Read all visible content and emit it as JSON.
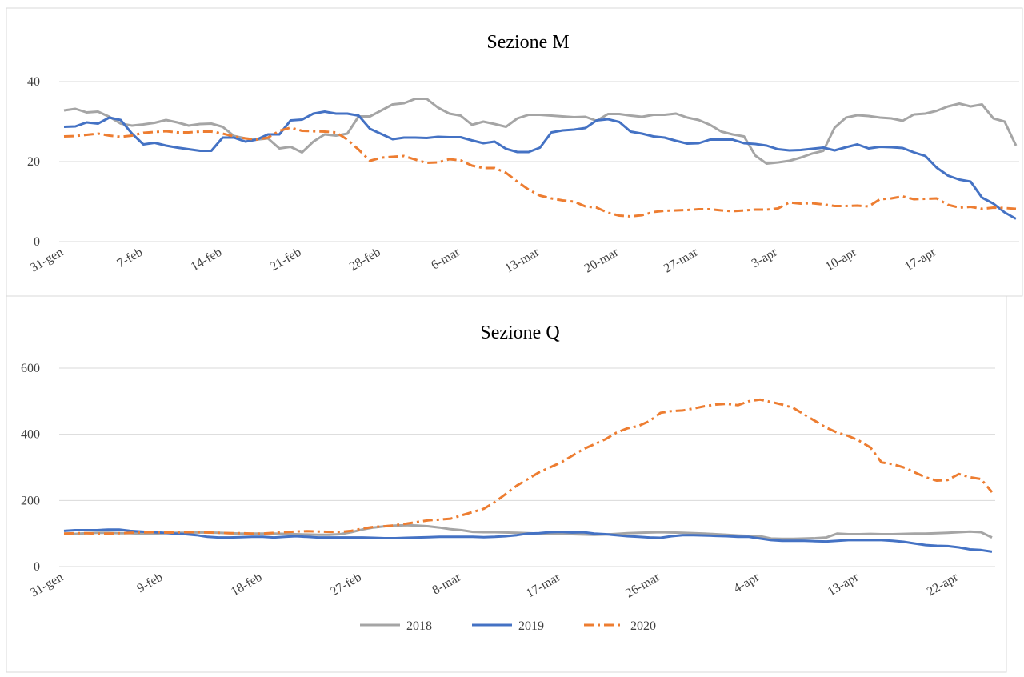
{
  "chart_data": [
    {
      "type": "line",
      "title": "Sezione M",
      "categories": [
        "31-gen",
        null,
        null,
        null,
        null,
        null,
        null,
        "7-feb",
        null,
        null,
        null,
        null,
        null,
        null,
        "14-feb",
        null,
        null,
        null,
        null,
        null,
        null,
        "21-feb",
        null,
        null,
        null,
        null,
        null,
        null,
        "28-feb",
        null,
        null,
        null,
        null,
        null,
        null,
        "6-mar",
        null,
        null,
        null,
        null,
        null,
        null,
        "13-mar",
        null,
        null,
        null,
        null,
        null,
        null,
        "20-mar",
        null,
        null,
        null,
        null,
        null,
        null,
        "27-mar",
        null,
        null,
        null,
        null,
        null,
        null,
        "3-apr",
        null,
        null,
        null,
        null,
        null,
        null,
        "10-apr",
        null,
        null,
        null,
        null,
        null,
        null,
        "17-apr",
        null,
        null,
        null,
        null,
        null,
        null,
        null
      ],
      "ylim": [
        0,
        40
      ],
      "yticks": [
        0,
        20,
        40
      ],
      "grid": true,
      "series": [
        {
          "color": "#a5a5a5",
          "dash": "solid",
          "values": [
            32.8,
            33.2,
            32.3,
            32.5,
            31.2,
            29.5,
            29,
            29.3,
            29.7,
            30.4,
            29.8,
            29,
            29.4,
            29.5,
            28.7,
            26.4,
            25.8,
            25.5,
            25.8,
            23.3,
            23.7,
            22.3,
            25,
            26.8,
            26.5,
            27,
            31.3,
            31.3,
            32.8,
            34.3,
            34.6,
            35.7,
            35.7,
            33.5,
            32,
            31.5,
            29.2,
            30,
            29.4,
            28.7,
            30.8,
            31.7,
            31.7,
            31.5,
            31.3,
            31.1,
            31.2,
            30.2,
            31.9,
            31.9,
            31.5,
            31.2,
            31.7,
            31.7,
            32,
            31,
            30.4,
            29.2,
            27.5,
            26.8,
            26.3,
            21.5,
            19.5,
            19.8,
            20.2,
            21,
            22,
            22.7,
            28.5,
            31,
            31.6,
            31.4,
            31,
            30.8,
            30.2,
            31.8,
            32,
            32.7,
            33.8,
            34.5,
            33.8,
            34.3,
            30.8,
            30,
            24
          ]
        },
        {
          "color": "#4472c4",
          "dash": "solid",
          "values": [
            28.7,
            28.8,
            29.8,
            29.5,
            31,
            30.4,
            27,
            24.3,
            24.7,
            24,
            23.5,
            23.1,
            22.7,
            22.7,
            26,
            26,
            25,
            25.5,
            26.8,
            26.8,
            30.3,
            30.5,
            32,
            32.5,
            32,
            32,
            31.5,
            28.2,
            26.9,
            25.6,
            26,
            26,
            25.9,
            26.2,
            26.1,
            26.1,
            25.3,
            24.6,
            25,
            23.2,
            22.4,
            22.4,
            23.5,
            27.3,
            27.8,
            28,
            28.4,
            30.3,
            30.6,
            29.9,
            27.5,
            27,
            26.3,
            26,
            25.2,
            24.5,
            24.6,
            25.5,
            25.5,
            25.5,
            24.6,
            24.4,
            24,
            23.1,
            22.8,
            22.9,
            23.2,
            23.5,
            22.8,
            23.6,
            24.3,
            23.3,
            23.7,
            23.6,
            23.4,
            22.3,
            21.4,
            18.5,
            16.5,
            15.5,
            15,
            11,
            9.5,
            7.3,
            5.7
          ]
        },
        {
          "color": "#ed7d31",
          "dash": "dashdot",
          "values": [
            26.3,
            26.4,
            26.7,
            27,
            26.5,
            26.2,
            26.5,
            27.2,
            27.4,
            27.6,
            27.3,
            27.3,
            27.5,
            27.5,
            27,
            26.3,
            25.8,
            25.5,
            26,
            27.7,
            28.5,
            27.7,
            27.6,
            27.5,
            27.3,
            25.5,
            23,
            20.2,
            21,
            21.2,
            21.4,
            20.5,
            19.7,
            19.8,
            20.6,
            20.3,
            19,
            18.4,
            18.4,
            17.2,
            15,
            13,
            11.5,
            10.8,
            10.3,
            10,
            8.8,
            8.5,
            7.2,
            6.5,
            6.3,
            6.6,
            7.4,
            7.7,
            7.8,
            7.9,
            8.1,
            8.1,
            7.8,
            7.6,
            7.8,
            8,
            8,
            8.3,
            9.8,
            9.5,
            9.6,
            9.3,
            8.9,
            8.9,
            9,
            8.8,
            10.6,
            10.8,
            11.3,
            10.6,
            10.7,
            10.8,
            9.2,
            8.5,
            8.7,
            8.2,
            8.5,
            8.4,
            8.2
          ]
        }
      ]
    },
    {
      "type": "line",
      "title": "Sezione Q",
      "categories": [
        "31-gen",
        null,
        null,
        null,
        null,
        null,
        null,
        null,
        null,
        "9-feb",
        null,
        null,
        null,
        null,
        null,
        null,
        null,
        null,
        "18-feb",
        null,
        null,
        null,
        null,
        null,
        null,
        null,
        null,
        "27-feb",
        null,
        null,
        null,
        null,
        null,
        null,
        null,
        null,
        "8-mar",
        null,
        null,
        null,
        null,
        null,
        null,
        null,
        null,
        "17-mar",
        null,
        null,
        null,
        null,
        null,
        null,
        null,
        null,
        "26-mar",
        null,
        null,
        null,
        null,
        null,
        null,
        null,
        null,
        "4-apr",
        null,
        null,
        null,
        null,
        null,
        null,
        null,
        null,
        "13-apr",
        null,
        null,
        null,
        null,
        null,
        null,
        null,
        null,
        "22-apr",
        null,
        null,
        null
      ],
      "ylim": [
        0,
        600
      ],
      "yticks": [
        0,
        200,
        400,
        600
      ],
      "grid": true,
      "legend": "bottom",
      "series": [
        {
          "name": "2018",
          "color": "#a5a5a5",
          "dash": "solid",
          "values": [
            100,
            99,
            101,
            102,
            102,
            101,
            101,
            100,
            100,
            101,
            102,
            102,
            103,
            103,
            102,
            101,
            100,
            100,
            100,
            100,
            99,
            98,
            97,
            96,
            96,
            98,
            104,
            112,
            118,
            122,
            124,
            125,
            124,
            122,
            118,
            113,
            110,
            105,
            104,
            104,
            103,
            102,
            101,
            100,
            100,
            99,
            98,
            97,
            96,
            97,
            99,
            101,
            102,
            103,
            104,
            103,
            102,
            101,
            100,
            98,
            96,
            94,
            93,
            92,
            85,
            84,
            84,
            85,
            86,
            88,
            100,
            98,
            98,
            99,
            98,
            98,
            99,
            100,
            100,
            101,
            102,
            104,
            106,
            104,
            88
          ]
        },
        {
          "name": "2019",
          "color": "#4472c4",
          "dash": "solid",
          "values": [
            108,
            110,
            110,
            110,
            112,
            112,
            108,
            106,
            104,
            102,
            100,
            98,
            95,
            90,
            88,
            88,
            89,
            90,
            90,
            88,
            90,
            92,
            90,
            88,
            88,
            88,
            88,
            88,
            87,
            86,
            86,
            87,
            88,
            89,
            90,
            90,
            90,
            90,
            89,
            90,
            92,
            95,
            100,
            101,
            104,
            105,
            103,
            104,
            100,
            98,
            95,
            92,
            90,
            88,
            87,
            92,
            95,
            95,
            94,
            93,
            92,
            90,
            90,
            85,
            80,
            78,
            78,
            78,
            77,
            76,
            78,
            80,
            80,
            80,
            80,
            78,
            75,
            70,
            65,
            63,
            62,
            58,
            52,
            50,
            45
          ]
        },
        {
          "name": "2020",
          "color": "#ed7d31",
          "dash": "dashdot",
          "values": [
            100,
            101,
            101,
            100,
            100,
            101,
            102,
            103,
            104,
            103,
            103,
            104,
            104,
            103,
            102,
            101,
            101,
            100,
            100,
            102,
            104,
            106,
            107,
            106,
            105,
            105,
            108,
            115,
            120,
            122,
            125,
            130,
            135,
            140,
            142,
            145,
            155,
            165,
            175,
            195,
            220,
            245,
            265,
            285,
            300,
            315,
            335,
            355,
            370,
            385,
            405,
            418,
            425,
            440,
            465,
            470,
            472,
            478,
            485,
            490,
            492,
            488,
            500,
            505,
            498,
            490,
            480,
            460,
            440,
            420,
            405,
            395,
            380,
            360,
            315,
            310,
            300,
            285,
            270,
            260,
            262,
            280,
            270,
            265,
            225
          ]
        }
      ]
    }
  ]
}
